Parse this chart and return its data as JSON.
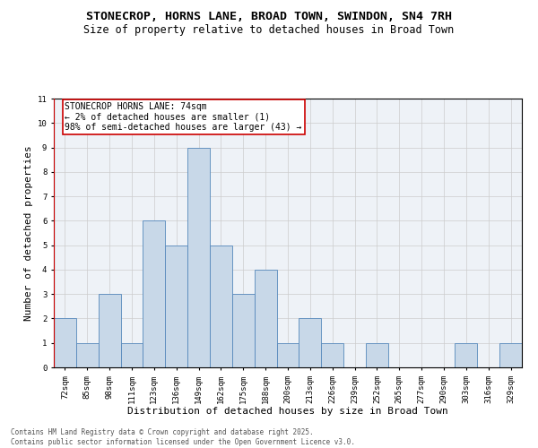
{
  "title_line1": "STONECROP, HORNS LANE, BROAD TOWN, SWINDON, SN4 7RH",
  "title_line2": "Size of property relative to detached houses in Broad Town",
  "xlabel": "Distribution of detached houses by size in Broad Town",
  "ylabel": "Number of detached properties",
  "categories": [
    "72sqm",
    "85sqm",
    "98sqm",
    "111sqm",
    "123sqm",
    "136sqm",
    "149sqm",
    "162sqm",
    "175sqm",
    "188sqm",
    "200sqm",
    "213sqm",
    "226sqm",
    "239sqm",
    "252sqm",
    "265sqm",
    "277sqm",
    "290sqm",
    "303sqm",
    "316sqm",
    "329sqm"
  ],
  "values": [
    2,
    1,
    3,
    1,
    6,
    5,
    9,
    5,
    3,
    4,
    1,
    2,
    1,
    0,
    1,
    0,
    0,
    0,
    1,
    0,
    1
  ],
  "bar_color": "#c8d8e8",
  "bar_edge_color": "#5588bb",
  "annotation_text": "STONECROP HORNS LANE: 74sqm\n← 2% of detached houses are smaller (1)\n98% of semi-detached houses are larger (43) →",
  "annotation_box_color": "#ffffff",
  "annotation_box_edge": "#cc0000",
  "vline_color": "#cc0000",
  "ylim": [
    0,
    11
  ],
  "yticks": [
    0,
    1,
    2,
    3,
    4,
    5,
    6,
    7,
    8,
    9,
    10,
    11
  ],
  "grid_color": "#cccccc",
  "bg_color": "#eef2f7",
  "footer": "Contains HM Land Registry data © Crown copyright and database right 2025.\nContains public sector information licensed under the Open Government Licence v3.0.",
  "title_fontsize": 9.5,
  "subtitle_fontsize": 8.5,
  "xlabel_fontsize": 8,
  "ylabel_fontsize": 8,
  "tick_fontsize": 6.5,
  "annotation_fontsize": 7,
  "footer_fontsize": 5.5
}
